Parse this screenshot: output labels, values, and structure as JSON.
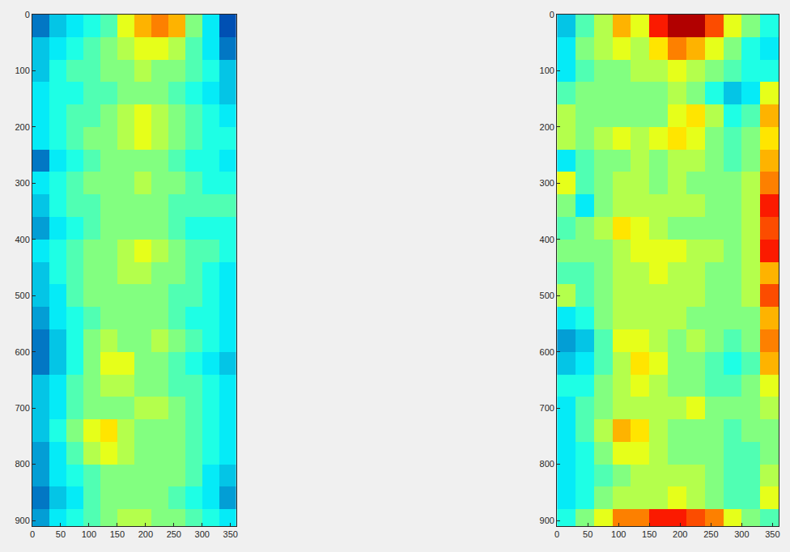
{
  "chart_data": [
    {
      "type": "heatmap",
      "color": "jet",
      "zlim": [
        0,
        1
      ],
      "xlim": [
        0,
        360
      ],
      "ylim": [
        910,
        0
      ],
      "xticks": [
        0,
        50,
        100,
        150,
        200,
        250,
        300,
        350
      ],
      "yticks": [
        0,
        100,
        200,
        300,
        400,
        500,
        600,
        700,
        800,
        900
      ],
      "x": [
        15,
        45,
        75,
        105,
        135,
        165,
        195,
        225,
        255,
        285,
        315,
        345
      ],
      "y": [
        20,
        60,
        100,
        140,
        180,
        220,
        260,
        300,
        340,
        380,
        420,
        460,
        500,
        540,
        580,
        620,
        660,
        700,
        740,
        780,
        820,
        860,
        900
      ],
      "z": [
        [
          0.2,
          0.3,
          0.35,
          0.4,
          0.45,
          0.6,
          0.7,
          0.75,
          0.7,
          0.5,
          0.35,
          0.15
        ],
        [
          0.3,
          0.35,
          0.4,
          0.45,
          0.5,
          0.55,
          0.6,
          0.6,
          0.55,
          0.45,
          0.35,
          0.2
        ],
        [
          0.3,
          0.4,
          0.45,
          0.45,
          0.5,
          0.5,
          0.55,
          0.5,
          0.5,
          0.45,
          0.4,
          0.3
        ],
        [
          0.35,
          0.4,
          0.4,
          0.45,
          0.45,
          0.5,
          0.5,
          0.5,
          0.45,
          0.4,
          0.35,
          0.3
        ],
        [
          0.35,
          0.4,
          0.45,
          0.45,
          0.5,
          0.55,
          0.6,
          0.55,
          0.5,
          0.45,
          0.4,
          0.35
        ],
        [
          0.35,
          0.4,
          0.45,
          0.5,
          0.5,
          0.55,
          0.6,
          0.55,
          0.5,
          0.45,
          0.4,
          0.4
        ],
        [
          0.2,
          0.35,
          0.4,
          0.45,
          0.5,
          0.5,
          0.5,
          0.5,
          0.45,
          0.4,
          0.4,
          0.35
        ],
        [
          0.35,
          0.4,
          0.45,
          0.5,
          0.5,
          0.5,
          0.55,
          0.5,
          0.5,
          0.45,
          0.4,
          0.4
        ],
        [
          0.3,
          0.4,
          0.45,
          0.45,
          0.5,
          0.5,
          0.5,
          0.5,
          0.45,
          0.45,
          0.45,
          0.45
        ],
        [
          0.25,
          0.35,
          0.4,
          0.45,
          0.5,
          0.5,
          0.5,
          0.5,
          0.45,
          0.4,
          0.4,
          0.4
        ],
        [
          0.35,
          0.4,
          0.45,
          0.5,
          0.5,
          0.55,
          0.6,
          0.55,
          0.5,
          0.45,
          0.45,
          0.4
        ],
        [
          0.3,
          0.4,
          0.45,
          0.5,
          0.5,
          0.55,
          0.55,
          0.5,
          0.5,
          0.45,
          0.4,
          0.35
        ],
        [
          0.3,
          0.35,
          0.45,
          0.5,
          0.5,
          0.5,
          0.5,
          0.5,
          0.45,
          0.45,
          0.4,
          0.35
        ],
        [
          0.25,
          0.35,
          0.4,
          0.45,
          0.5,
          0.5,
          0.5,
          0.5,
          0.45,
          0.4,
          0.4,
          0.35
        ],
        [
          0.2,
          0.3,
          0.4,
          0.5,
          0.55,
          0.5,
          0.5,
          0.55,
          0.5,
          0.45,
          0.4,
          0.35
        ],
        [
          0.2,
          0.3,
          0.4,
          0.5,
          0.6,
          0.6,
          0.5,
          0.5,
          0.45,
          0.4,
          0.35,
          0.3
        ],
        [
          0.3,
          0.35,
          0.45,
          0.5,
          0.55,
          0.55,
          0.5,
          0.5,
          0.45,
          0.45,
          0.4,
          0.35
        ],
        [
          0.3,
          0.35,
          0.45,
          0.5,
          0.5,
          0.5,
          0.55,
          0.55,
          0.5,
          0.45,
          0.4,
          0.35
        ],
        [
          0.3,
          0.4,
          0.5,
          0.6,
          0.65,
          0.55,
          0.5,
          0.5,
          0.5,
          0.45,
          0.4,
          0.35
        ],
        [
          0.25,
          0.35,
          0.45,
          0.55,
          0.6,
          0.55,
          0.5,
          0.5,
          0.5,
          0.45,
          0.4,
          0.35
        ],
        [
          0.25,
          0.35,
          0.4,
          0.45,
          0.5,
          0.5,
          0.5,
          0.5,
          0.5,
          0.45,
          0.35,
          0.3
        ],
        [
          0.2,
          0.3,
          0.35,
          0.45,
          0.5,
          0.5,
          0.5,
          0.5,
          0.45,
          0.4,
          0.35,
          0.25
        ],
        [
          0.25,
          0.35,
          0.4,
          0.45,
          0.5,
          0.55,
          0.55,
          0.5,
          0.5,
          0.45,
          0.4,
          0.35
        ]
      ]
    },
    {
      "type": "heatmap",
      "color": "jet",
      "zlim": [
        0,
        1
      ],
      "xlim": [
        0,
        360
      ],
      "ylim": [
        910,
        0
      ],
      "xticks": [
        0,
        50,
        100,
        150,
        200,
        250,
        300,
        350
      ],
      "yticks": [
        0,
        100,
        200,
        300,
        400,
        500,
        600,
        700,
        800,
        900
      ],
      "x": [
        15,
        45,
        75,
        105,
        135,
        165,
        195,
        225,
        255,
        285,
        315,
        345
      ],
      "y": [
        20,
        60,
        100,
        140,
        180,
        220,
        260,
        300,
        340,
        380,
        420,
        460,
        500,
        540,
        580,
        620,
        660,
        700,
        740,
        780,
        820,
        860,
        900
      ],
      "z": [
        [
          0.3,
          0.45,
          0.55,
          0.7,
          0.6,
          0.85,
          0.95,
          0.95,
          0.8,
          0.6,
          0.5,
          0.4
        ],
        [
          0.35,
          0.5,
          0.55,
          0.6,
          0.55,
          0.65,
          0.75,
          0.7,
          0.6,
          0.5,
          0.4,
          0.35
        ],
        [
          0.35,
          0.45,
          0.5,
          0.5,
          0.55,
          0.55,
          0.6,
          0.55,
          0.5,
          0.45,
          0.4,
          0.4
        ],
        [
          0.45,
          0.5,
          0.5,
          0.5,
          0.5,
          0.5,
          0.55,
          0.5,
          0.4,
          0.3,
          0.35,
          0.6
        ],
        [
          0.55,
          0.5,
          0.5,
          0.5,
          0.5,
          0.5,
          0.6,
          0.65,
          0.55,
          0.4,
          0.45,
          0.7
        ],
        [
          0.55,
          0.5,
          0.55,
          0.6,
          0.55,
          0.6,
          0.65,
          0.6,
          0.5,
          0.45,
          0.5,
          0.65
        ],
        [
          0.35,
          0.45,
          0.5,
          0.5,
          0.55,
          0.5,
          0.55,
          0.55,
          0.5,
          0.45,
          0.5,
          0.7
        ],
        [
          0.6,
          0.45,
          0.5,
          0.55,
          0.55,
          0.5,
          0.55,
          0.5,
          0.5,
          0.5,
          0.55,
          0.75
        ],
        [
          0.5,
          0.35,
          0.5,
          0.55,
          0.55,
          0.55,
          0.55,
          0.55,
          0.5,
          0.5,
          0.55,
          0.85
        ],
        [
          0.45,
          0.5,
          0.55,
          0.65,
          0.6,
          0.55,
          0.5,
          0.5,
          0.5,
          0.5,
          0.55,
          0.8
        ],
        [
          0.5,
          0.5,
          0.5,
          0.55,
          0.6,
          0.6,
          0.6,
          0.55,
          0.55,
          0.5,
          0.55,
          0.85
        ],
        [
          0.45,
          0.45,
          0.5,
          0.55,
          0.55,
          0.6,
          0.55,
          0.55,
          0.5,
          0.5,
          0.55,
          0.7
        ],
        [
          0.55,
          0.45,
          0.5,
          0.55,
          0.55,
          0.55,
          0.55,
          0.55,
          0.5,
          0.5,
          0.55,
          0.8
        ],
        [
          0.35,
          0.4,
          0.5,
          0.55,
          0.55,
          0.55,
          0.55,
          0.5,
          0.5,
          0.5,
          0.5,
          0.7
        ],
        [
          0.25,
          0.3,
          0.45,
          0.6,
          0.6,
          0.55,
          0.5,
          0.55,
          0.5,
          0.45,
          0.5,
          0.75
        ],
        [
          0.3,
          0.35,
          0.45,
          0.55,
          0.65,
          0.6,
          0.5,
          0.5,
          0.45,
          0.4,
          0.45,
          0.7
        ],
        [
          0.4,
          0.4,
          0.5,
          0.55,
          0.6,
          0.55,
          0.5,
          0.5,
          0.45,
          0.45,
          0.5,
          0.6
        ],
        [
          0.35,
          0.45,
          0.5,
          0.55,
          0.55,
          0.55,
          0.55,
          0.6,
          0.5,
          0.5,
          0.5,
          0.55
        ],
        [
          0.35,
          0.45,
          0.55,
          0.7,
          0.65,
          0.55,
          0.5,
          0.5,
          0.5,
          0.45,
          0.5,
          0.5
        ],
        [
          0.35,
          0.4,
          0.5,
          0.6,
          0.6,
          0.55,
          0.5,
          0.5,
          0.5,
          0.45,
          0.45,
          0.5
        ],
        [
          0.35,
          0.4,
          0.45,
          0.5,
          0.55,
          0.55,
          0.55,
          0.55,
          0.5,
          0.45,
          0.45,
          0.55
        ],
        [
          0.35,
          0.4,
          0.5,
          0.55,
          0.55,
          0.55,
          0.6,
          0.55,
          0.5,
          0.45,
          0.45,
          0.6
        ],
        [
          0.4,
          0.5,
          0.6,
          0.75,
          0.75,
          0.85,
          0.85,
          0.8,
          0.75,
          0.6,
          0.5,
          0.45
        ]
      ]
    }
  ]
}
